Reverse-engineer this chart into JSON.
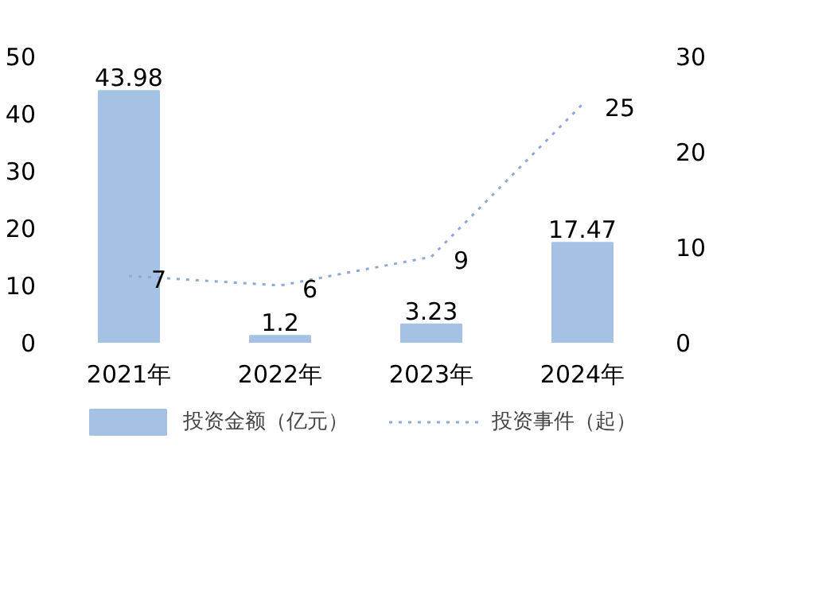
{
  "chart_data": {
    "type": "bar",
    "categories": [
      "2021年",
      "2022年",
      "2023年",
      "2024年"
    ],
    "series": [
      {
        "name": "投资金额（亿元）",
        "color": "#a5c2e4",
        "values": [
          43.98,
          1.2,
          3.23,
          17.47
        ]
      },
      {
        "name": "投资事件（起）",
        "type": "line",
        "axis": "y2",
        "color": "#8fa9d6",
        "line_style": "dotted",
        "values": [
          7,
          6,
          9,
          25
        ]
      }
    ],
    "ylim": [
      0,
      50
    ],
    "yticks": [
      0,
      10,
      20,
      30,
      40,
      50
    ],
    "y2lim": [
      0,
      30
    ],
    "y2ticks": [
      0,
      10,
      20,
      30
    ],
    "data_labels": true,
    "grid": false,
    "legend": "bottom"
  }
}
